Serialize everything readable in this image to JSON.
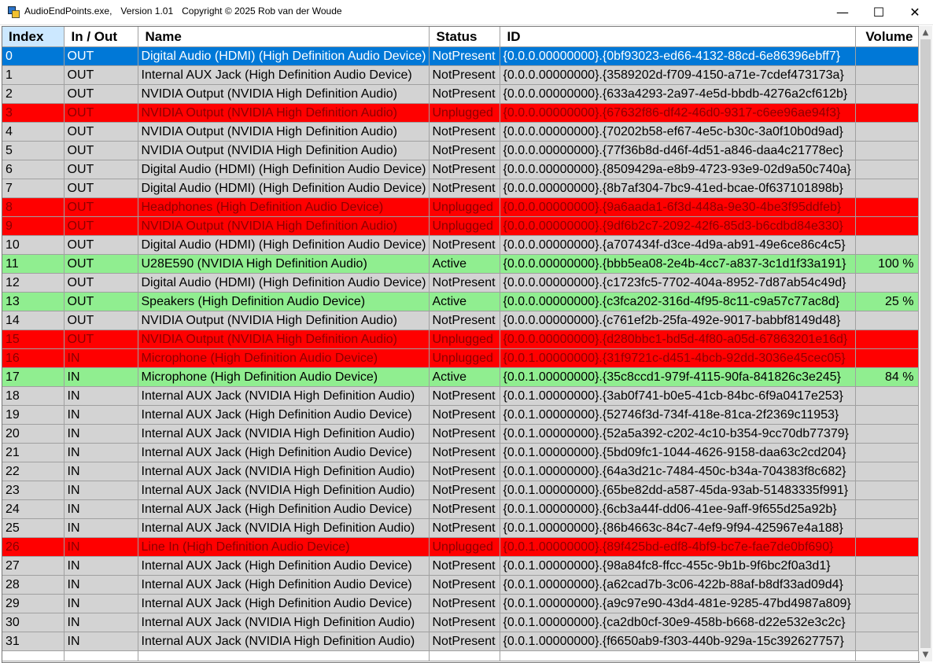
{
  "window": {
    "app_name": "AudioEndPoints.exe,",
    "version": "Version 1.01",
    "copyright": "Copyright © 2025 Rob van der Woude",
    "minimize_glyph": "—",
    "maximize_glyph": "☐",
    "close_glyph": "✕"
  },
  "colors": {
    "notpresent": "#d3d3d3",
    "unplugged": "#ff0000",
    "active": "#90ee90",
    "selected": "#0078d7"
  },
  "columns": [
    "Index",
    "In / Out",
    "Name",
    "Status",
    "ID",
    "Volume"
  ],
  "rows": [
    {
      "index": "0",
      "io": "OUT",
      "name": "Digital Audio (HDMI) (High Definition Audio Device)",
      "status": "NotPresent",
      "id": "{0.0.0.00000000}.{0bf93023-ed66-4132-88cd-6e86396ebff7}",
      "volume": "",
      "state": "selected"
    },
    {
      "index": "1",
      "io": "OUT",
      "name": "Internal AUX Jack (High Definition Audio Device)",
      "status": "NotPresent",
      "id": "{0.0.0.00000000}.{3589202d-f709-4150-a71e-7cdef473173a}",
      "volume": "",
      "state": "notpresent"
    },
    {
      "index": "2",
      "io": "OUT",
      "name": "NVIDIA Output (NVIDIA High Definition Audio)",
      "status": "NotPresent",
      "id": "{0.0.0.00000000}.{633a4293-2a97-4e5d-bbdb-4276a2cf612b}",
      "volume": "",
      "state": "notpresent"
    },
    {
      "index": "3",
      "io": "OUT",
      "name": "NVIDIA Output (NVIDIA High Definition Audio)",
      "status": "Unplugged",
      "id": "{0.0.0.00000000}.{67632f86-df42-46d0-9317-c6ee96ae94f3}",
      "volume": "",
      "state": "unplugged"
    },
    {
      "index": "4",
      "io": "OUT",
      "name": "NVIDIA Output (NVIDIA High Definition Audio)",
      "status": "NotPresent",
      "id": "{0.0.0.00000000}.{70202b58-ef67-4e5c-b30c-3a0f10b0d9ad}",
      "volume": "",
      "state": "notpresent"
    },
    {
      "index": "5",
      "io": "OUT",
      "name": "NVIDIA Output (NVIDIA High Definition Audio)",
      "status": "NotPresent",
      "id": "{0.0.0.00000000}.{77f36b8d-d46f-4d51-a846-daa4c21778ec}",
      "volume": "",
      "state": "notpresent"
    },
    {
      "index": "6",
      "io": "OUT",
      "name": "Digital Audio (HDMI) (High Definition Audio Device)",
      "status": "NotPresent",
      "id": "{0.0.0.00000000}.{8509429a-e8b9-4723-93e9-02d9a50c740a}",
      "volume": "",
      "state": "notpresent"
    },
    {
      "index": "7",
      "io": "OUT",
      "name": "Digital Audio (HDMI) (High Definition Audio Device)",
      "status": "NotPresent",
      "id": "{0.0.0.00000000}.{8b7af304-7bc9-41ed-bcae-0f637101898b}",
      "volume": "",
      "state": "notpresent"
    },
    {
      "index": "8",
      "io": "OUT",
      "name": "Headphones (High Definition Audio Device)",
      "status": "Unplugged",
      "id": "{0.0.0.00000000}.{9a6aada1-6f3d-448a-9e30-4be3f95ddfeb}",
      "volume": "",
      "state": "unplugged"
    },
    {
      "index": "9",
      "io": "OUT",
      "name": "NVIDIA Output (NVIDIA High Definition Audio)",
      "status": "Unplugged",
      "id": "{0.0.0.00000000}.{9df6b2c7-2092-42f6-85d3-b6cdbd84e330}",
      "volume": "",
      "state": "unplugged"
    },
    {
      "index": "10",
      "io": "OUT",
      "name": "Digital Audio (HDMI) (High Definition Audio Device)",
      "status": "NotPresent",
      "id": "{0.0.0.00000000}.{a707434f-d3ce-4d9a-ab91-49e6ce86c4c5}",
      "volume": "",
      "state": "notpresent"
    },
    {
      "index": "11",
      "io": "OUT",
      "name": "U28E590 (NVIDIA High Definition Audio)",
      "status": "Active",
      "id": "{0.0.0.00000000}.{bbb5ea08-2e4b-4cc7-a837-3c1d1f33a191}",
      "volume": "100 %",
      "state": "active"
    },
    {
      "index": "12",
      "io": "OUT",
      "name": "Digital Audio (HDMI) (High Definition Audio Device)",
      "status": "NotPresent",
      "id": "{0.0.0.00000000}.{c1723fc5-7702-404a-8952-7d87ab54c49d}",
      "volume": "",
      "state": "notpresent"
    },
    {
      "index": "13",
      "io": "OUT",
      "name": "Speakers (High Definition Audio Device)",
      "status": "Active",
      "id": "{0.0.0.00000000}.{c3fca202-316d-4f95-8c11-c9a57c77ac8d}",
      "volume": "25 %",
      "state": "active"
    },
    {
      "index": "14",
      "io": "OUT",
      "name": "NVIDIA Output (NVIDIA High Definition Audio)",
      "status": "NotPresent",
      "id": "{0.0.0.00000000}.{c761ef2b-25fa-492e-9017-babbf8149d48}",
      "volume": "",
      "state": "notpresent"
    },
    {
      "index": "15",
      "io": "OUT",
      "name": "NVIDIA Output (NVIDIA High Definition Audio)",
      "status": "Unplugged",
      "id": "{0.0.0.00000000}.{d280bbc1-bd5d-4f80-a05d-67863201e16d}",
      "volume": "",
      "state": "unplugged"
    },
    {
      "index": "16",
      "io": "IN",
      "name": "Microphone (High Definition Audio Device)",
      "status": "Unplugged",
      "id": "{0.0.1.00000000}.{31f9721c-d451-4bcb-92dd-3036e45cec05}",
      "volume": "",
      "state": "unplugged"
    },
    {
      "index": "17",
      "io": "IN",
      "name": "Microphone (High Definition Audio Device)",
      "status": "Active",
      "id": "{0.0.1.00000000}.{35c8ccd1-979f-4115-90fa-841826c3e245}",
      "volume": "84 %",
      "state": "active"
    },
    {
      "index": "18",
      "io": "IN",
      "name": "Internal AUX Jack (NVIDIA High Definition Audio)",
      "status": "NotPresent",
      "id": "{0.0.1.00000000}.{3ab0f741-b0e5-41cb-84bc-6f9a0417e253}",
      "volume": "",
      "state": "notpresent"
    },
    {
      "index": "19",
      "io": "IN",
      "name": "Internal AUX Jack (High Definition Audio Device)",
      "status": "NotPresent",
      "id": "{0.0.1.00000000}.{52746f3d-734f-418e-81ca-2f2369c11953}",
      "volume": "",
      "state": "notpresent"
    },
    {
      "index": "20",
      "io": "IN",
      "name": "Internal AUX Jack (NVIDIA High Definition Audio)",
      "status": "NotPresent",
      "id": "{0.0.1.00000000}.{52a5a392-c202-4c10-b354-9cc70db77379}",
      "volume": "",
      "state": "notpresent"
    },
    {
      "index": "21",
      "io": "IN",
      "name": "Internal AUX Jack (High Definition Audio Device)",
      "status": "NotPresent",
      "id": "{0.0.1.00000000}.{5bd09fc1-1044-4626-9158-daa63c2cd204}",
      "volume": "",
      "state": "notpresent"
    },
    {
      "index": "22",
      "io": "IN",
      "name": "Internal AUX Jack (NVIDIA High Definition Audio)",
      "status": "NotPresent",
      "id": "{0.0.1.00000000}.{64a3d21c-7484-450c-b34a-704383f8c682}",
      "volume": "",
      "state": "notpresent"
    },
    {
      "index": "23",
      "io": "IN",
      "name": "Internal AUX Jack (NVIDIA High Definition Audio)",
      "status": "NotPresent",
      "id": "{0.0.1.00000000}.{65be82dd-a587-45da-93ab-51483335f991}",
      "volume": "",
      "state": "notpresent"
    },
    {
      "index": "24",
      "io": "IN",
      "name": "Internal AUX Jack (High Definition Audio Device)",
      "status": "NotPresent",
      "id": "{0.0.1.00000000}.{6cb3a44f-dd06-41ee-9aff-9f655d25a92b}",
      "volume": "",
      "state": "notpresent"
    },
    {
      "index": "25",
      "io": "IN",
      "name": "Internal AUX Jack (NVIDIA High Definition Audio)",
      "status": "NotPresent",
      "id": "{0.0.1.00000000}.{86b4663c-84c7-4ef9-9f94-425967e4a188}",
      "volume": "",
      "state": "notpresent"
    },
    {
      "index": "26",
      "io": "IN",
      "name": "Line In (High Definition Audio Device)",
      "status": "Unplugged",
      "id": "{0.0.1.00000000}.{89f425bd-edf8-4bf9-bc7e-fae7de0bf690}",
      "volume": "",
      "state": "unplugged"
    },
    {
      "index": "27",
      "io": "IN",
      "name": "Internal AUX Jack (High Definition Audio Device)",
      "status": "NotPresent",
      "id": "{0.0.1.00000000}.{98a84fc8-ffcc-455c-9b1b-9f6bc2f0a3d1}",
      "volume": "",
      "state": "notpresent"
    },
    {
      "index": "28",
      "io": "IN",
      "name": "Internal AUX Jack (High Definition Audio Device)",
      "status": "NotPresent",
      "id": "{0.0.1.00000000}.{a62cad7b-3c06-422b-88af-b8df33ad09d4}",
      "volume": "",
      "state": "notpresent"
    },
    {
      "index": "29",
      "io": "IN",
      "name": "Internal AUX Jack (High Definition Audio Device)",
      "status": "NotPresent",
      "id": "{0.0.1.00000000}.{a9c97e90-43d4-481e-9285-47bd4987a809}",
      "volume": "",
      "state": "notpresent"
    },
    {
      "index": "30",
      "io": "IN",
      "name": "Internal AUX Jack (NVIDIA High Definition Audio)",
      "status": "NotPresent",
      "id": "{0.0.1.00000000}.{ca2db0cf-30e9-458b-b668-d22e532e3c2c}",
      "volume": "",
      "state": "notpresent"
    },
    {
      "index": "31",
      "io": "IN",
      "name": "Internal AUX Jack (NVIDIA High Definition Audio)",
      "status": "NotPresent",
      "id": "{0.0.1.00000000}.{f6650ab9-f303-440b-929a-15c392627757}",
      "volume": "",
      "state": "notpresent"
    }
  ]
}
